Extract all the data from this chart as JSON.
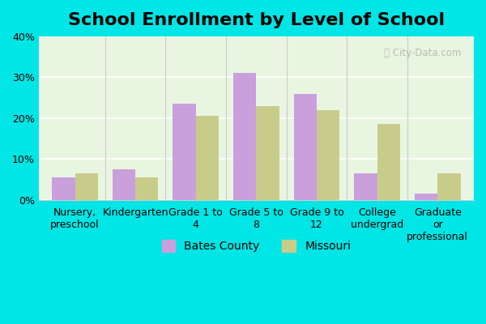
{
  "title": "School Enrollment by Level of School",
  "categories": [
    "Nursery,\npreschool",
    "Kindergarten",
    "Grade 1 to\n4",
    "Grade 5 to\n8",
    "Grade 9 to\n12",
    "College\nundergrad",
    "Graduate\nor\nprofessional"
  ],
  "bates_county": [
    5.5,
    7.5,
    23.5,
    31.0,
    26.0,
    6.5,
    1.5
  ],
  "missouri": [
    6.5,
    5.5,
    20.5,
    23.0,
    22.0,
    18.5,
    6.5
  ],
  "bates_color": "#c9a0dc",
  "missouri_color": "#c8cc8a",
  "ylim": [
    0,
    40
  ],
  "yticks": [
    0,
    10,
    20,
    30,
    40
  ],
  "legend_bates": "Bates County",
  "legend_missouri": "Missouri",
  "bar_width": 0.38,
  "title_fontsize": 16,
  "tick_fontsize": 9,
  "legend_fontsize": 10
}
